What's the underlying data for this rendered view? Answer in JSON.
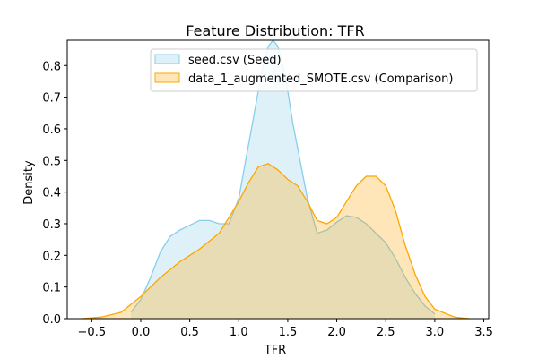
{
  "chart_data": {
    "type": "area",
    "title": "Feature Distribution: TFR",
    "xlabel": "TFR",
    "ylabel": "Density",
    "xlim": [
      -0.75,
      3.55
    ],
    "ylim": [
      0,
      0.88
    ],
    "xticks": [
      -0.5,
      0.0,
      0.5,
      1.0,
      1.5,
      2.0,
      2.5,
      3.0,
      3.5
    ],
    "xtick_labels": [
      "−0.5",
      "0.0",
      "0.5",
      "1.0",
      "1.5",
      "2.0",
      "2.5",
      "3.0",
      "3.5"
    ],
    "yticks": [
      0.0,
      0.1,
      0.2,
      0.3,
      0.4,
      0.5,
      0.6,
      0.7,
      0.8
    ],
    "ytick_labels": [
      "0.0",
      "0.1",
      "0.2",
      "0.3",
      "0.4",
      "0.5",
      "0.6",
      "0.7",
      "0.8"
    ],
    "grid": false,
    "legend_position": "top-right",
    "series": [
      {
        "name": "seed.csv (Seed)",
        "line_color": "#87ceeb",
        "fill_color": "#87ceeb",
        "fill_opacity": 0.28,
        "x": [
          -0.1,
          0.0,
          0.1,
          0.2,
          0.3,
          0.4,
          0.5,
          0.6,
          0.7,
          0.8,
          0.9,
          1.0,
          1.1,
          1.2,
          1.25,
          1.3,
          1.35,
          1.4,
          1.45,
          1.5,
          1.55,
          1.6,
          1.7,
          1.8,
          1.9,
          2.0,
          2.1,
          2.2,
          2.3,
          2.4,
          2.5,
          2.6,
          2.7,
          2.8,
          2.9,
          3.0
        ],
        "y": [
          0.02,
          0.06,
          0.13,
          0.21,
          0.26,
          0.28,
          0.295,
          0.31,
          0.31,
          0.3,
          0.3,
          0.38,
          0.55,
          0.72,
          0.8,
          0.86,
          0.88,
          0.86,
          0.8,
          0.72,
          0.62,
          0.54,
          0.38,
          0.27,
          0.28,
          0.305,
          0.325,
          0.32,
          0.3,
          0.27,
          0.24,
          0.19,
          0.13,
          0.08,
          0.04,
          0.015
        ]
      },
      {
        "name": "data_1_augmented_SMOTE.csv (Comparison)",
        "line_color": "#ffa500",
        "fill_color": "#ffa500",
        "fill_opacity": 0.28,
        "x": [
          -0.6,
          -0.4,
          -0.2,
          0.0,
          0.2,
          0.4,
          0.6,
          0.8,
          1.0,
          1.1,
          1.2,
          1.3,
          1.4,
          1.5,
          1.6,
          1.7,
          1.8,
          1.9,
          2.0,
          2.1,
          2.2,
          2.3,
          2.4,
          2.5,
          2.6,
          2.7,
          2.8,
          2.9,
          3.0,
          3.2,
          3.35
        ],
        "y": [
          0.0,
          0.005,
          0.02,
          0.07,
          0.13,
          0.18,
          0.22,
          0.27,
          0.37,
          0.43,
          0.48,
          0.49,
          0.47,
          0.44,
          0.42,
          0.37,
          0.31,
          0.3,
          0.32,
          0.37,
          0.42,
          0.45,
          0.45,
          0.42,
          0.34,
          0.23,
          0.14,
          0.07,
          0.03,
          0.005,
          0.0
        ]
      }
    ]
  }
}
